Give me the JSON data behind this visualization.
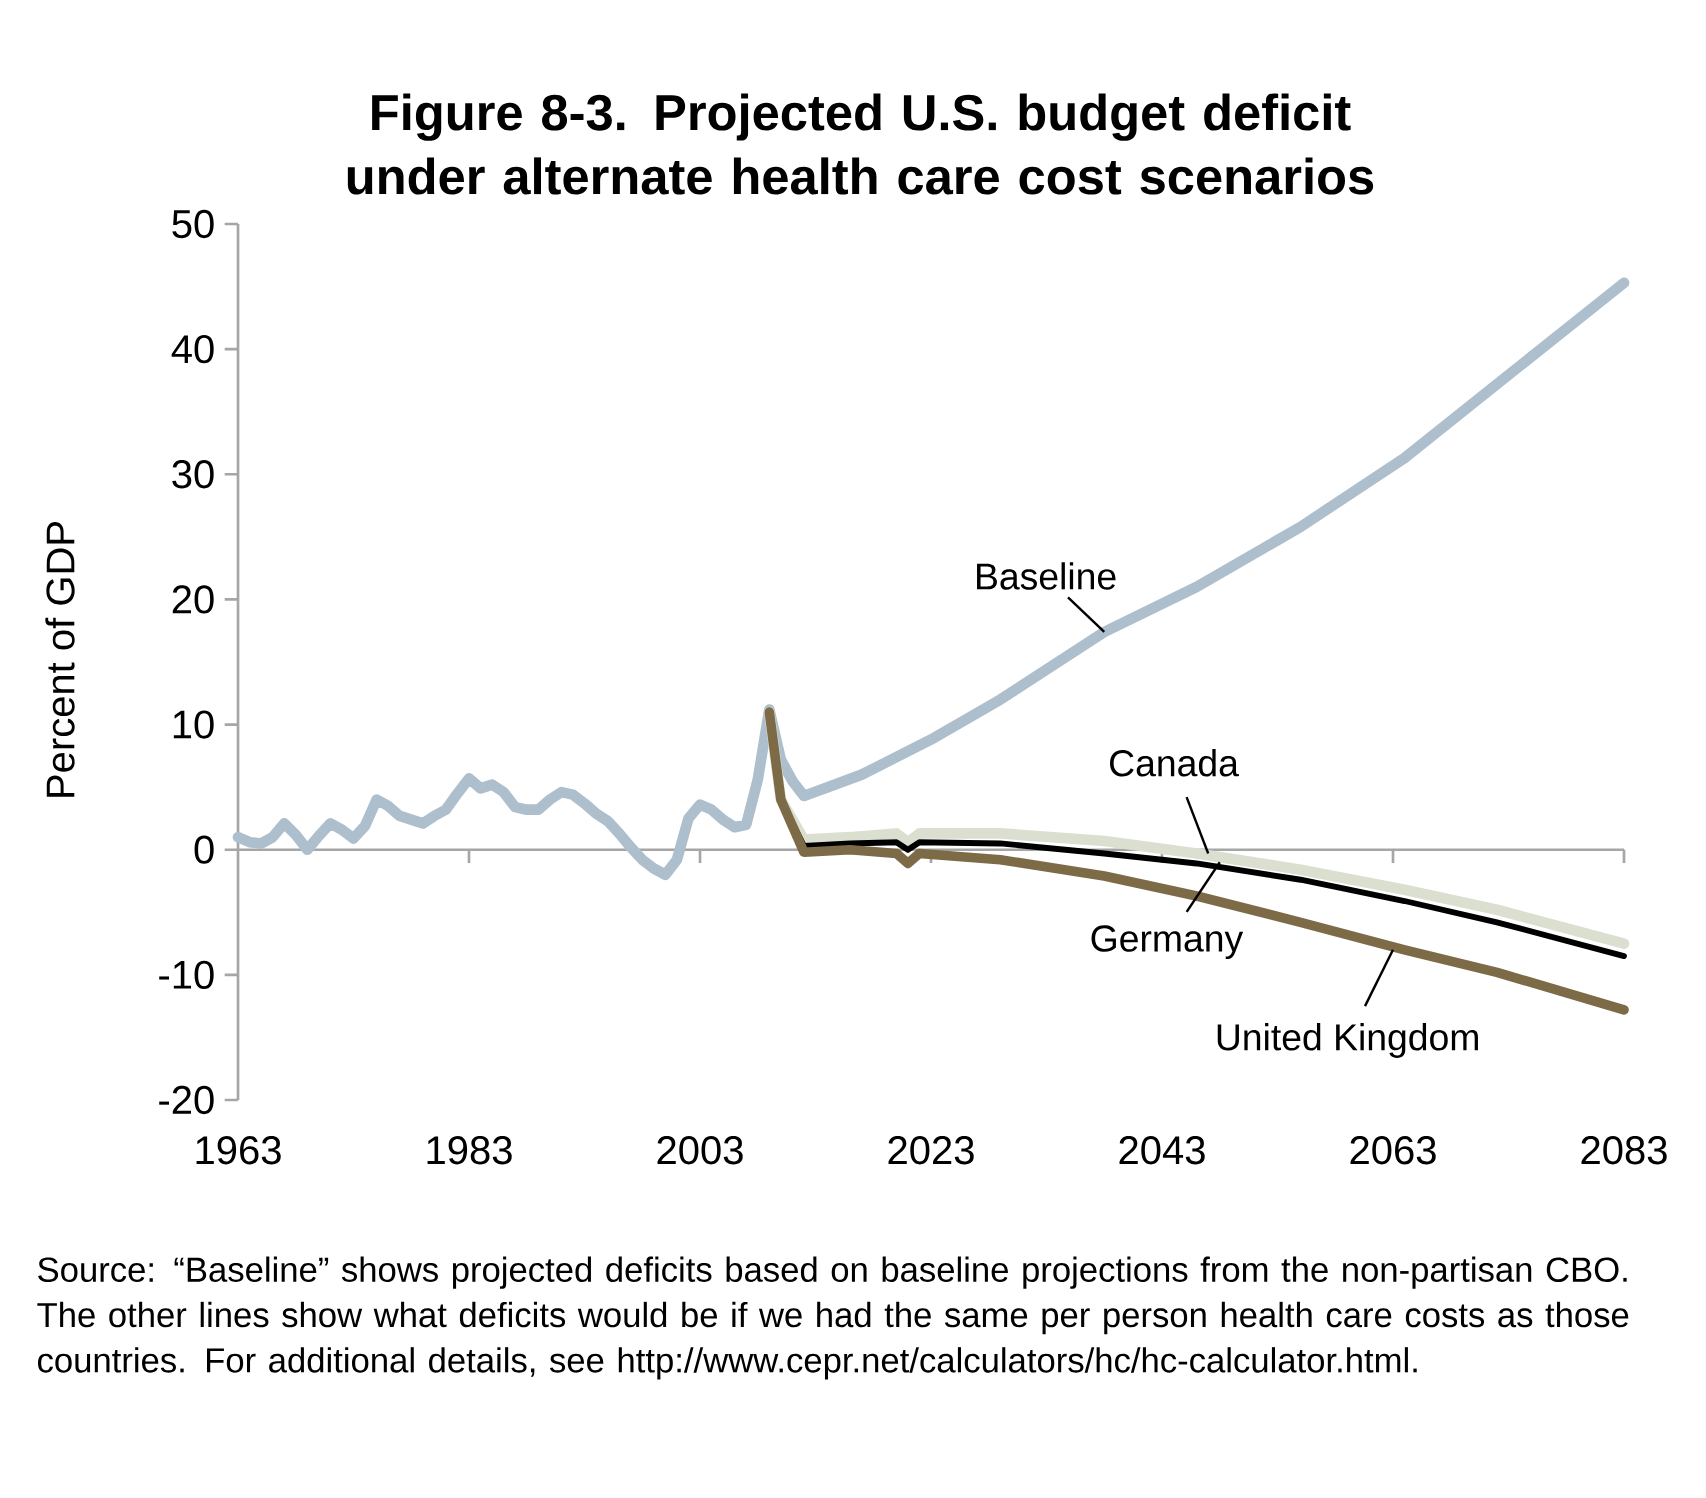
{
  "chart_data": {
    "type": "line",
    "title": "Figure 8-3. Projected U.S. budget deficit under alternate health care cost scenarios",
    "ylabel": "Percent of GDP",
    "xlim": [
      1963,
      2083
    ],
    "xticks": [
      1963,
      1983,
      2003,
      2023,
      2043,
      2063,
      2083
    ],
    "ylim": [
      -20,
      50
    ],
    "yticks": [
      -20,
      -10,
      0,
      10,
      20,
      30,
      40,
      50
    ],
    "marker": "none",
    "line_style": "solid",
    "series": [
      {
        "color": "#adbfcd",
        "x": [
          1963,
          1964,
          1965,
          1966,
          1967,
          1968,
          1969,
          1970,
          1971,
          1972,
          1973,
          1974,
          1975,
          1976,
          1977,
          1978,
          1979,
          1980,
          1981,
          1982,
          1983,
          1984,
          1985,
          1986,
          1987,
          1988,
          1989,
          1990,
          1991,
          1992,
          1993,
          1994,
          1995,
          1996,
          1997,
          1998,
          1999,
          2000,
          2001,
          2002,
          2003,
          2004,
          2005,
          2006,
          2007,
          2008,
          2009,
          2010,
          2011,
          2012,
          2017,
          2023,
          2029,
          2038,
          2046,
          2055,
          2064,
          2072,
          2083
        ],
        "values": [
          1.0,
          0.6,
          0.5,
          1.0,
          2.1,
          1.2,
          0.0,
          1.1,
          2.1,
          1.6,
          0.9,
          1.9,
          4.0,
          3.5,
          2.7,
          2.4,
          2.1,
          2.7,
          3.2,
          4.5,
          5.7,
          4.9,
          5.2,
          4.6,
          3.4,
          3.2,
          3.2,
          4.0,
          4.6,
          4.4,
          3.7,
          2.9,
          2.3,
          1.3,
          0.2,
          -0.8,
          -1.5,
          -2.0,
          -0.8,
          2.5,
          3.6,
          3.2,
          2.4,
          1.8,
          2.0,
          5.6,
          11.2,
          7.2,
          5.5,
          4.3,
          6.0,
          8.8,
          12.0,
          17.4,
          21.0,
          25.8,
          31.3,
          37.2,
          45.3
        ]
      },
      {
        "color": "#dadfd0",
        "x": [
          2009,
          2010,
          2012,
          2016,
          2020,
          2021,
          2022,
          2029,
          2038,
          2046,
          2055,
          2064,
          2072,
          2083
        ],
        "values": [
          11.0,
          4.0,
          0.8,
          1.0,
          1.3,
          0.6,
          1.3,
          1.3,
          0.7,
          -0.3,
          -1.6,
          -3.2,
          -4.8,
          -7.5
        ]
      },
      {
        "color": "#000000",
        "x": [
          2009,
          2010,
          2012,
          2016,
          2020,
          2021,
          2022,
          2029,
          2038,
          2046,
          2055,
          2064,
          2072,
          2083
        ],
        "values": [
          11.0,
          4.0,
          0.3,
          0.5,
          0.6,
          0.0,
          0.6,
          0.5,
          -0.3,
          -1.1,
          -2.4,
          -4.1,
          -5.8,
          -8.5
        ]
      },
      {
        "color": "#7d6a46",
        "x": [
          2009,
          2010,
          2012,
          2016,
          2020,
          2021,
          2022,
          2029,
          2038,
          2046,
          2055,
          2064,
          2072,
          2083
        ],
        "values": [
          11.0,
          4.0,
          -0.2,
          0.0,
          -0.3,
          -1.1,
          -0.3,
          -0.8,
          -2.1,
          -3.7,
          -5.8,
          -8.0,
          -9.8,
          -12.8
        ]
      }
    ],
    "annotations": [
      {
        "text": "Baseline",
        "x": 2038,
        "y": 17.4
      },
      {
        "text": "Canada",
        "x": 2047,
        "y": -0.3
      },
      {
        "text": "Germany",
        "x": 2048,
        "y": -1.0
      },
      {
        "text": "United Kingdom",
        "x": 2063,
        "y": -8.0
      },
      "Source: “Baseline” shows projected deficits based on baseline projections from the non-partisan CBO. The other lines show what deficits would be if we had the same per person health care costs as those countries. For additional details, see http://www.cepr.net/calculators/hc/hc-calculator.html."
    ]
  }
}
